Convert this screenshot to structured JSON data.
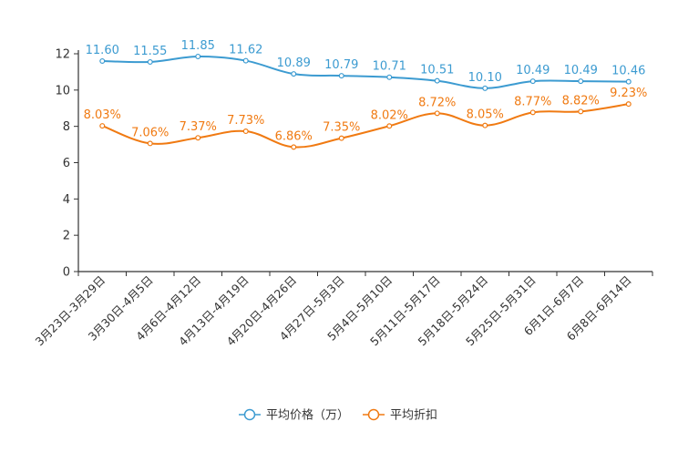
{
  "chart_data": {
    "type": "line",
    "title": "",
    "xlabel": "",
    "ylabel": "",
    "ylim": [
      0,
      12
    ],
    "yticks": [
      "0",
      "2",
      "4",
      "6",
      "8",
      "10",
      "12"
    ],
    "grid": false,
    "legend_position": "bottom-center",
    "categories": [
      "3月23日-3月29日",
      "3月30日-4月5日",
      "4月6日-4月12日",
      "4月13日-4月19日",
      "4月20日-4月26日",
      "4月27日-5月3日",
      "5月4日-5月10日",
      "5月11日-5月17日",
      "5月18日-5月24日",
      "5月25日-5月31日",
      "6月1日-6月7日",
      "6月8日-6月14日"
    ],
    "series": [
      {
        "name": "平均价格（万）",
        "color": "#3c9bd1",
        "values": [
          11.6,
          11.55,
          11.85,
          11.62,
          10.89,
          10.79,
          10.71,
          10.51,
          10.1,
          10.49,
          10.49,
          10.46
        ],
        "labels": [
          "11.60",
          "11.55",
          "11.85",
          "11.62",
          "10.89",
          "10.79",
          "10.71",
          "10.51",
          "10.10",
          "10.49",
          "10.49",
          "10.46"
        ]
      },
      {
        "name": "平均折扣",
        "color": "#f07a12",
        "values": [
          8.03,
          7.06,
          7.37,
          7.73,
          6.86,
          7.35,
          8.02,
          8.72,
          8.05,
          8.77,
          8.82,
          9.23
        ],
        "labels": [
          "8.03%",
          "7.06%",
          "7.37%",
          "7.73%",
          "6.86%",
          "7.35%",
          "8.02%",
          "8.72%",
          "8.05%",
          "8.77%",
          "8.82%",
          "9.23%"
        ]
      }
    ]
  }
}
